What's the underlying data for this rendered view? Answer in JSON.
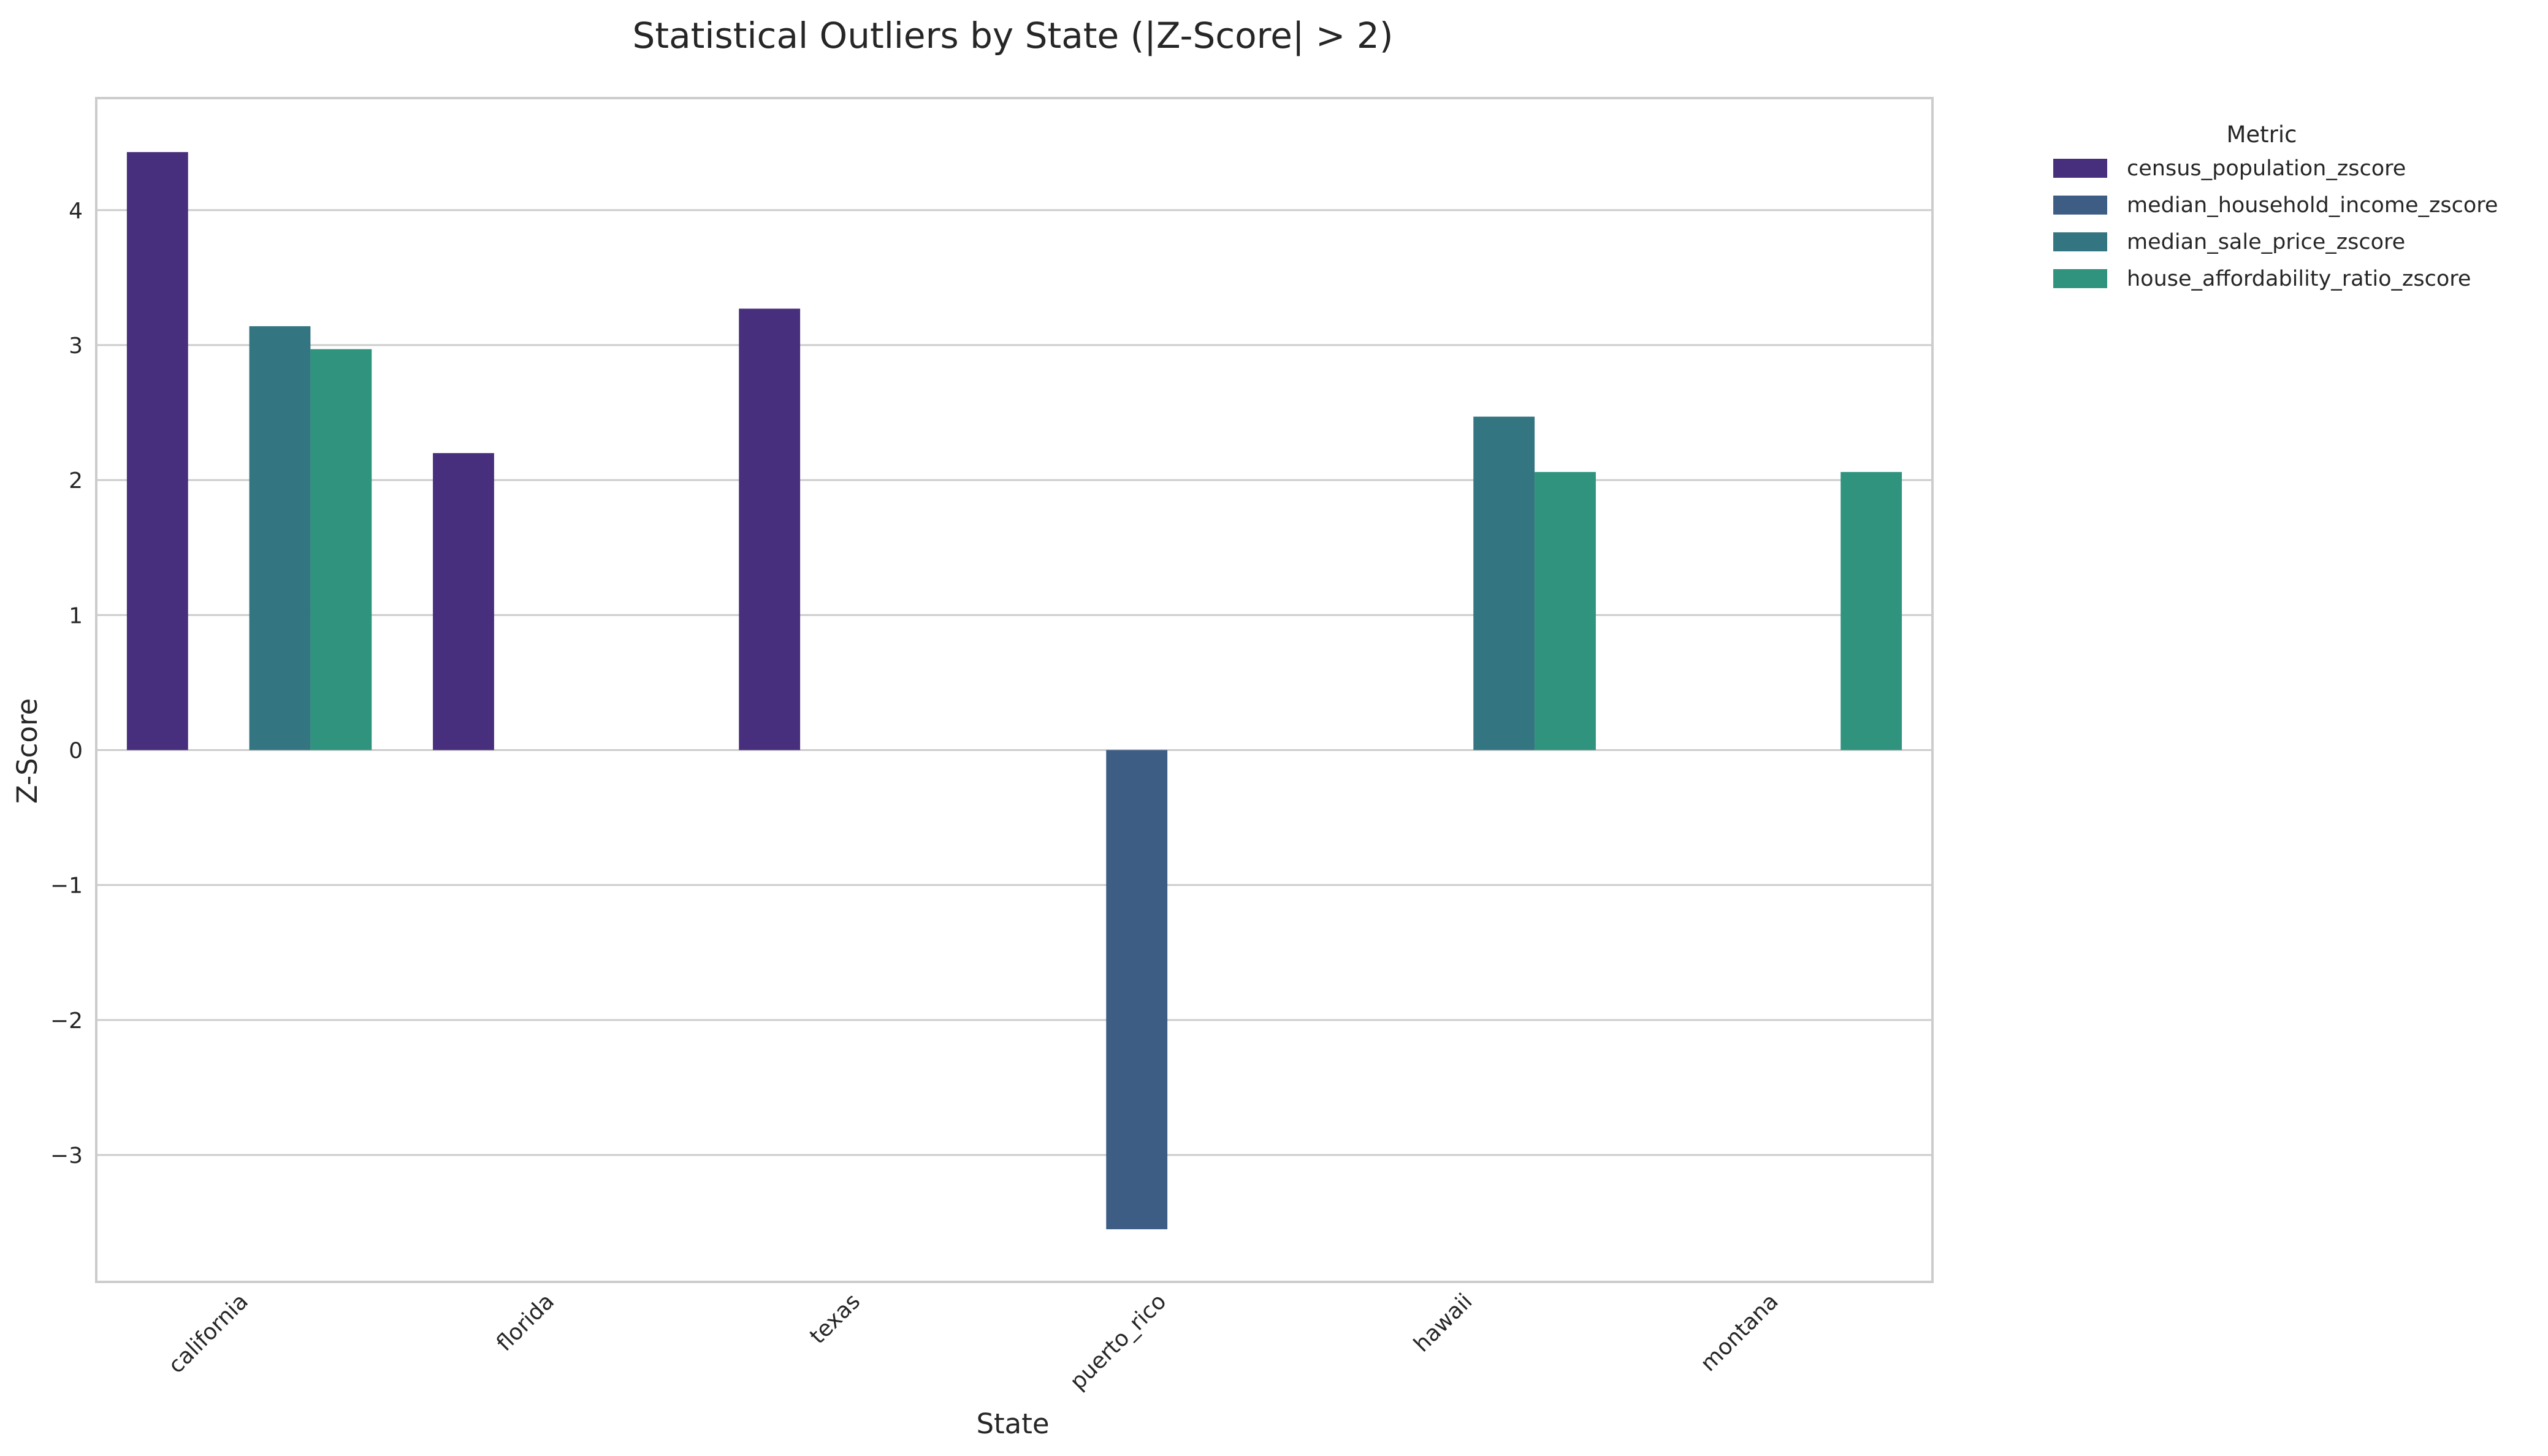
{
  "chart_data": {
    "type": "bar",
    "title": "Statistical Outliers by State (|Z-Score| > 2)",
    "xlabel": "State",
    "ylabel": "Z-Score",
    "categories": [
      "california",
      "florida",
      "texas",
      "puerto_rico",
      "hawaii",
      "montana"
    ],
    "yticks": [
      -3,
      -2,
      -1,
      0,
      1,
      2,
      3,
      4
    ],
    "ytick_labels": [
      "−3",
      "−2",
      "−1",
      "0",
      "1",
      "2",
      "3",
      "4"
    ],
    "ylim": [
      -3.94,
      4.83
    ],
    "grid": true,
    "legend": {
      "title": "Metric",
      "placement": "outside-top-right"
    },
    "series": [
      {
        "name": "census_population_zscore",
        "color": "#472f7d",
        "values": [
          4.43,
          2.2,
          3.27,
          null,
          null,
          null
        ]
      },
      {
        "name": "median_household_income_zscore",
        "color": "#3e5d85",
        "values": [
          null,
          null,
          null,
          -3.55,
          null,
          null
        ]
      },
      {
        "name": "median_sale_price_zscore",
        "color": "#337581",
        "values": [
          3.14,
          null,
          null,
          null,
          2.47,
          null
        ]
      },
      {
        "name": "house_affordability_ratio_zscore",
        "color": "#2f937e",
        "values": [
          2.97,
          null,
          null,
          null,
          2.06,
          2.06
        ]
      }
    ]
  }
}
